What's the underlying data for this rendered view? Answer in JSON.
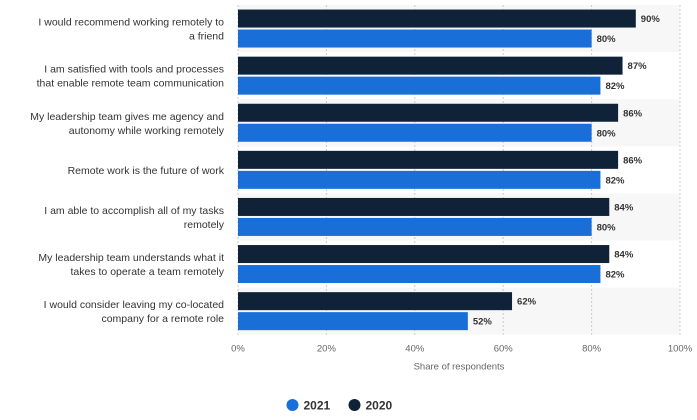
{
  "chart_data": {
    "type": "bar",
    "orientation": "horizontal",
    "categories": [
      [
        "I would recommend working remotely to",
        "a friend"
      ],
      [
        "I am satisfied with tools and processes",
        "that enable remote team communication"
      ],
      [
        "My leadership team gives me agency and",
        "autonomy while working remotely"
      ],
      [
        "Remote work is the future of work"
      ],
      [
        "I am able to accomplish all of my tasks",
        "remotely"
      ],
      [
        "My leadership team understands what it",
        "takes to operate a team remotely"
      ],
      [
        "I would consider leaving my co-located",
        "company for a remote role"
      ]
    ],
    "series": [
      {
        "name": "2020",
        "color": "#0f2237",
        "values": [
          90,
          87,
          86,
          86,
          84,
          84,
          62
        ]
      },
      {
        "name": "2021",
        "color": "#1a6ed8",
        "values": [
          80,
          82,
          80,
          82,
          80,
          82,
          52
        ]
      }
    ],
    "xlabel": "Share of respondents",
    "xlim": [
      0,
      100
    ],
    "ticks": [
      "0%",
      "20%",
      "40%",
      "60%",
      "80%",
      "100%"
    ],
    "value_suffix": "%",
    "legend": {
      "placement": "bottom-center",
      "items": [
        {
          "name": "2021",
          "color": "#1a6ed8"
        },
        {
          "name": "2020",
          "color": "#0f2237"
        }
      ]
    },
    "grid": true
  }
}
